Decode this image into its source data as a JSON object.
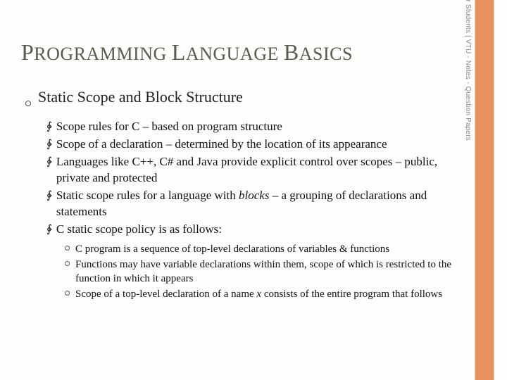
{
  "title_parts": {
    "p": "P",
    "rogramming": "ROGRAMMING ",
    "l": "L",
    "anguage": "ANGUAGE ",
    "b": "B",
    "asics": "ASICS"
  },
  "subtitle": "Static Scope and Block Structure",
  "bullets": [
    "Scope rules for C – based on program structure",
    "Scope of a declaration – determined by the location of its appearance",
    "Languages like C++, C# and Java provide explicit control over scopes – public, private and protected",
    "Static scope rules for a language with ",
    "C static scope policy is as follows:"
  ],
  "bullet3_italic": "blocks",
  "bullet3_tail": " – a grouping of declarations and statements",
  "sub_bullets": [
    "C program is a sequence of top-level declarations of variables & functions",
    "Functions may have variable declarations within them, scope of which is restricted to the function in which it appears",
    "Scope of a top-level declaration of a name "
  ],
  "sub2_italic": "x",
  "sub2_tail": " consists of the entire program that follows",
  "sidebar": "www.Bookspar.com | Website for Students | VTU - Notes - Question Papers",
  "colors": {
    "orange": "#e8915f",
    "title": "#5c5a4e",
    "bg": "#fdfdfb"
  }
}
